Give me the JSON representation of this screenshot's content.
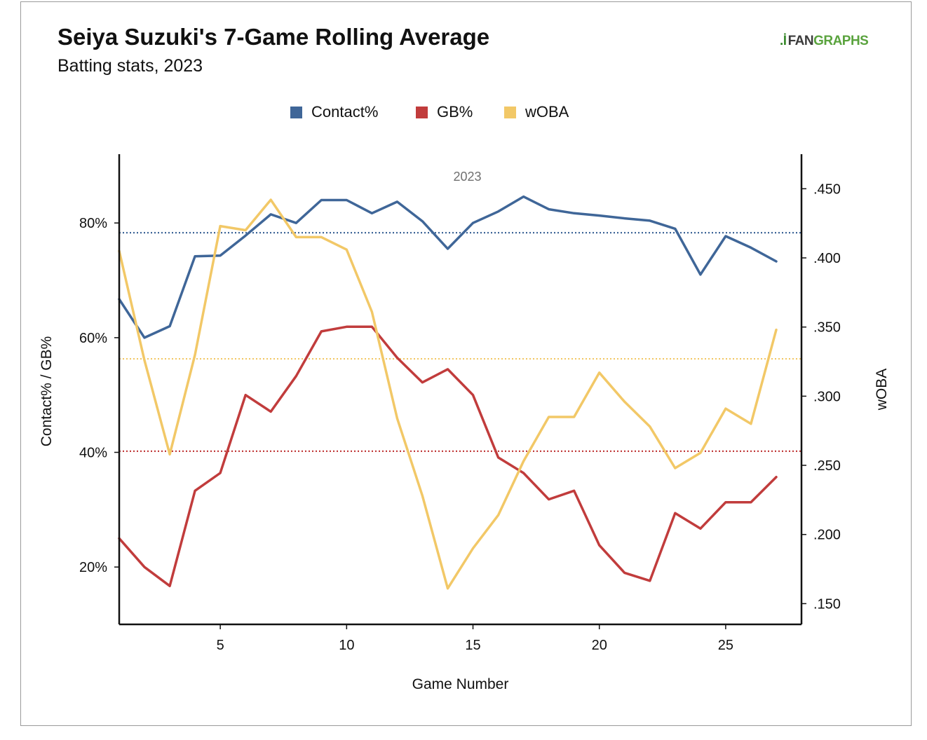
{
  "header": {
    "title": "Seiya Suzuki's 7-Game Rolling Average",
    "subtitle": "Batting stats, 2023",
    "logo_mark": ".İ",
    "logo_fan": "FAN",
    "logo_graphs": "GRAPHS"
  },
  "chart_data": {
    "type": "line",
    "annotation": "2023",
    "xlabel": "Game Number",
    "ylabel_left": "Contact% / GB%",
    "ylabel_right": "wOBA",
    "x": [
      1,
      2,
      3,
      4,
      5,
      6,
      7,
      8,
      9,
      10,
      11,
      12,
      13,
      14,
      15,
      16,
      17,
      18,
      19,
      20,
      21,
      22,
      23,
      24,
      25,
      26,
      27
    ],
    "x_ticks": [
      5,
      10,
      15,
      20,
      25
    ],
    "x_tick_labels": [
      "5",
      "10",
      "15",
      "20",
      "25"
    ],
    "xlim": [
      1,
      28
    ],
    "ylim_left": [
      10,
      92
    ],
    "y_ticks_left": [
      20,
      40,
      60,
      80
    ],
    "y_tick_labels_left": [
      "20%",
      "40%",
      "60%",
      "80%"
    ],
    "ylim_right": [
      0.135,
      0.475
    ],
    "y_ticks_right": [
      0.15,
      0.2,
      0.25,
      0.3,
      0.35,
      0.4,
      0.45
    ],
    "y_tick_labels_right": [
      ".150",
      ".200",
      ".250",
      ".300",
      ".350",
      ".400",
      ".450"
    ],
    "legend_position": "top-center",
    "series": [
      {
        "name": "Contact%",
        "axis": "left",
        "color": "#3f6698",
        "values": [
          66.7,
          60.0,
          62.0,
          74.2,
          74.3,
          77.8,
          81.5,
          80.0,
          84.0,
          84.0,
          81.7,
          83.7,
          80.3,
          75.5,
          80.0,
          82.0,
          84.6,
          82.4,
          81.7,
          81.3,
          80.8,
          80.4,
          79.0,
          71.0,
          77.7,
          75.7,
          73.3
        ],
        "average": 78.3
      },
      {
        "name": "GB%",
        "axis": "left",
        "color": "#c13c3c",
        "values": [
          25.0,
          20.0,
          16.7,
          33.3,
          36.4,
          50.0,
          47.1,
          53.3,
          61.1,
          61.9,
          61.9,
          56.5,
          52.2,
          54.5,
          50.0,
          39.1,
          36.4,
          31.8,
          33.3,
          23.8,
          19.0,
          17.6,
          29.4,
          26.7,
          31.3,
          31.3,
          35.7
        ],
        "average": 40.2
      },
      {
        "name": "wOBA",
        "axis": "right",
        "color": "#f2c867",
        "values": [
          0.405,
          0.326,
          0.258,
          0.33,
          0.423,
          0.42,
          0.442,
          0.415,
          0.415,
          0.406,
          0.361,
          0.284,
          0.228,
          0.161,
          0.19,
          0.214,
          0.253,
          0.285,
          0.285,
          0.317,
          0.296,
          0.278,
          0.248,
          0.259,
          0.291,
          0.28,
          0.348
        ],
        "average": 0.327
      }
    ]
  }
}
